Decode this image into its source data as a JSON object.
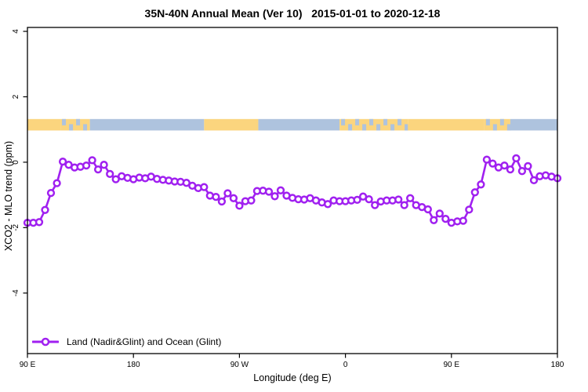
{
  "title": "35N-40N Annual Mean (Ver 10)   2015-01-01 to 2020-12-18",
  "chart_data": {
    "type": "line",
    "title": "35N-40N Annual Mean (Ver 10)   2015-01-01 to 2020-12-18",
    "xlabel": "Longitude (deg E)",
    "ylabel": "XCO2 - MLO trend (ppm)",
    "xlim": [
      90,
      540
    ],
    "ylim": [
      -5.85,
      4.12
    ],
    "grid": false,
    "x_ticks": [
      {
        "value": 90,
        "label": "90 E"
      },
      {
        "value": 180,
        "label": "180"
      },
      {
        "value": 270,
        "label": "90 W"
      },
      {
        "value": 360,
        "label": "0"
      },
      {
        "value": 450,
        "label": "90 E"
      },
      {
        "value": 540,
        "label": "180"
      }
    ],
    "y_ticks": [
      {
        "value": 4,
        "label": "4"
      },
      {
        "value": 2,
        "label": "2"
      },
      {
        "value": 0,
        "label": "0"
      },
      {
        "value": -2,
        "label": "-2"
      },
      {
        "value": -4,
        "label": "-4"
      }
    ],
    "series": [
      {
        "name": "Land (Nadir&Glint) and Ocean (Glint)",
        "color": "#A020F0",
        "marker": "open-circle",
        "x": [
          90,
          95,
          100,
          105,
          110,
          115,
          120,
          125,
          130,
          135,
          140,
          145,
          150,
          155,
          160,
          165,
          170,
          175,
          180,
          185,
          190,
          195,
          200,
          205,
          210,
          215,
          220,
          225,
          230,
          235,
          240,
          245,
          250,
          255,
          260,
          265,
          270,
          275,
          280,
          285,
          290,
          295,
          300,
          305,
          310,
          315,
          320,
          325,
          330,
          335,
          340,
          345,
          350,
          355,
          360,
          365,
          370,
          375,
          380,
          385,
          390,
          395,
          400,
          405,
          410,
          415,
          420,
          425,
          430,
          435,
          440,
          445,
          450,
          455,
          460,
          465,
          470,
          475,
          480,
          485,
          490,
          495,
          500,
          505,
          510,
          515,
          520,
          525,
          530,
          535,
          540
        ],
        "values": [
          -1.85,
          -1.85,
          -1.83,
          -1.46,
          -0.94,
          -0.64,
          0.02,
          -0.08,
          -0.16,
          -0.14,
          -0.1,
          0.06,
          -0.22,
          -0.08,
          -0.36,
          -0.52,
          -0.43,
          -0.48,
          -0.52,
          -0.47,
          -0.49,
          -0.44,
          -0.51,
          -0.54,
          -0.56,
          -0.59,
          -0.6,
          -0.63,
          -0.72,
          -0.79,
          -0.76,
          -1.02,
          -1.06,
          -1.2,
          -0.95,
          -1.1,
          -1.33,
          -1.19,
          -1.17,
          -0.88,
          -0.87,
          -0.9,
          -1.04,
          -0.86,
          -1.02,
          -1.09,
          -1.13,
          -1.14,
          -1.1,
          -1.17,
          -1.23,
          -1.28,
          -1.17,
          -1.19,
          -1.19,
          -1.17,
          -1.15,
          -1.05,
          -1.13,
          -1.31,
          -1.2,
          -1.17,
          -1.17,
          -1.14,
          -1.31,
          -1.1,
          -1.31,
          -1.37,
          -1.44,
          -1.77,
          -1.57,
          -1.73,
          -1.85,
          -1.81,
          -1.79,
          -1.45,
          -0.92,
          -0.68,
          0.08,
          -0.04,
          -0.16,
          -0.1,
          -0.22,
          0.12,
          -0.27,
          -0.12,
          -0.55,
          -0.43,
          -0.4,
          -0.44,
          -0.49
        ]
      }
    ],
    "surface_band": {
      "y_from": 0.97,
      "y_to": 1.32,
      "land_color": "#FBD57E",
      "ocean_color": "#AEC3DE",
      "segments": [
        {
          "from": 90,
          "to": 118,
          "type": "land"
        },
        {
          "from": 118,
          "to": 143,
          "type": "mixed"
        },
        {
          "from": 143,
          "to": 240,
          "type": "ocean"
        },
        {
          "from": 240,
          "to": 286,
          "type": "land"
        },
        {
          "from": 286,
          "to": 355,
          "type": "ocean"
        },
        {
          "from": 355,
          "to": 413,
          "type": "mixed"
        },
        {
          "from": 413,
          "to": 478,
          "type": "land"
        },
        {
          "from": 478,
          "to": 500,
          "type": "mixed"
        },
        {
          "from": 500,
          "to": 540,
          "type": "ocean"
        }
      ]
    },
    "legend": {
      "label": "Land (Nadir&Glint) and Ocean (Glint)",
      "position": "bottom-left"
    }
  }
}
